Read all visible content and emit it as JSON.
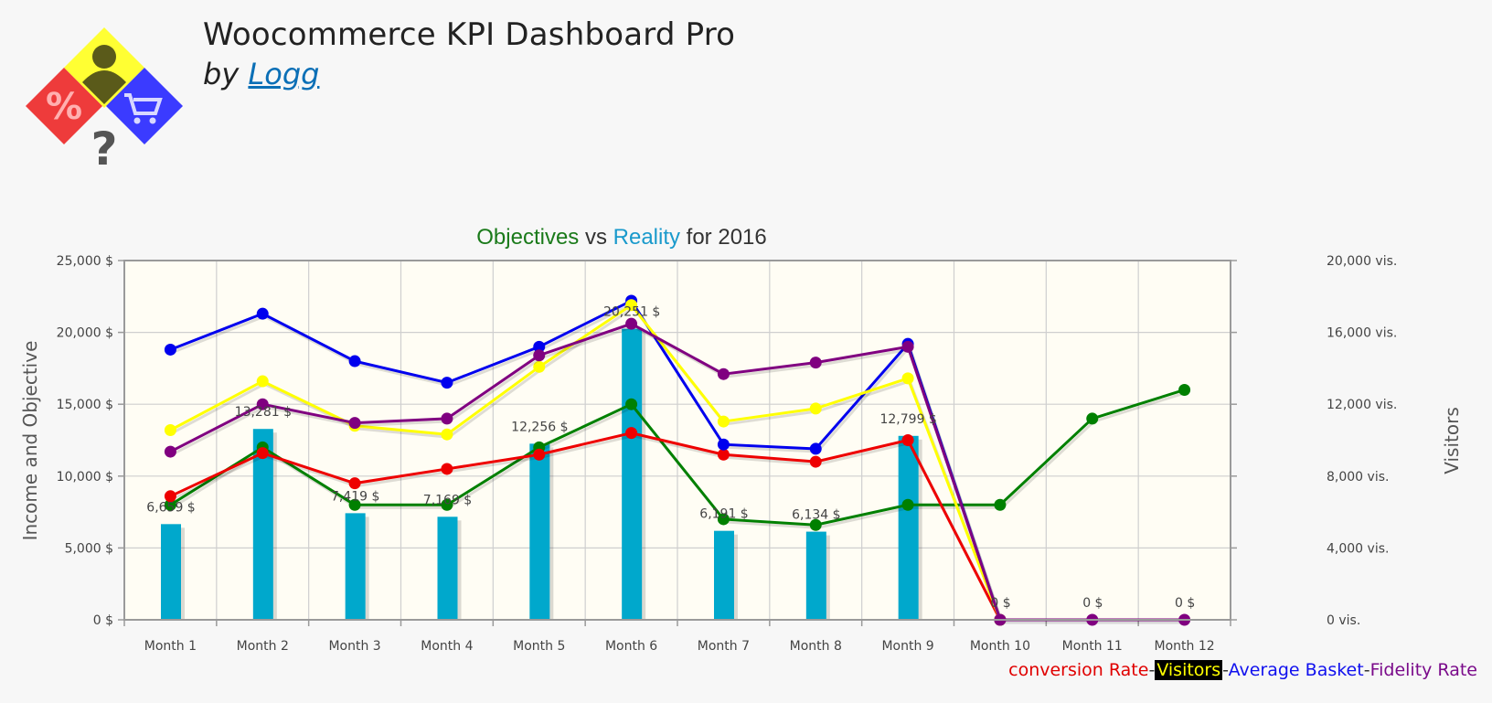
{
  "header": {
    "title": "Woocommerce KPI Dashboard Pro",
    "by_prefix": "by",
    "author_link": "Logg"
  },
  "chart_data": {
    "type": "bar",
    "title_parts": {
      "objectives": "Objectives",
      "vs": " vs ",
      "reality": "Reality",
      "suffix": " for 2016"
    },
    "categories": [
      "Month 1",
      "Month 2",
      "Month 3",
      "Month 4",
      "Month 5",
      "Month 6",
      "Month 7",
      "Month 8",
      "Month 9",
      "Month 10",
      "Month 11",
      "Month 12"
    ],
    "ylabel": "Income and Objective",
    "y2label": "Visitors",
    "ylim": [
      0,
      25000
    ],
    "y2lim": [
      0,
      20000
    ],
    "yticks": [
      "0 $",
      "5,000 $",
      "10,000 $",
      "15,000 $",
      "20,000 $",
      "25,000 $"
    ],
    "ytick_values": [
      0,
      5000,
      10000,
      15000,
      20000,
      25000
    ],
    "y2ticks": [
      "0 vis.",
      "4,000 vis.",
      "8,000 vis.",
      "12,000 vis.",
      "16,000 vis.",
      "20,000 vis."
    ],
    "y2tick_values": [
      0,
      4000,
      8000,
      12000,
      16000,
      20000
    ],
    "grid": true,
    "bars": {
      "values": [
        6659,
        13281,
        7419,
        7169,
        12256,
        20251,
        6191,
        6134,
        12799,
        0,
        0,
        0
      ],
      "labels": [
        "6,659 $",
        "13,281 $",
        "7,419 $",
        "7,169 $",
        "12,256 $",
        "20,251 $",
        "6,191 $",
        "6,134 $",
        "12,799 $",
        "0 $",
        "0 $",
        "0 $"
      ],
      "color": "#00a8cc"
    },
    "series": [
      {
        "color": "#008000",
        "values": [
          8000,
          12000,
          8000,
          8000,
          12000,
          15000,
          7000,
          6600,
          8000,
          8000,
          14000,
          16000
        ],
        "points": 12
      },
      {
        "color": "#ee0000",
        "values": [
          8600,
          11600,
          9500,
          10500,
          11500,
          13000,
          11500,
          11000,
          12500,
          0,
          0,
          0
        ],
        "points": 10
      },
      {
        "color": "#0000ee",
        "values": [
          18800,
          21300,
          18000,
          16500,
          19000,
          22200,
          12200,
          11900,
          19200,
          0,
          0,
          0
        ],
        "points": 10
      },
      {
        "color": "#ffff00",
        "values": [
          13200,
          16600,
          13500,
          12900,
          17600,
          21900,
          13800,
          14700,
          16800,
          0,
          0,
          0
        ],
        "points": 10
      },
      {
        "color": "#800080",
        "values": [
          11700,
          15000,
          13700,
          14000,
          18400,
          20600,
          17100,
          17900,
          19000,
          0,
          0,
          0
        ],
        "points": 12
      }
    ],
    "legend": {
      "items": [
        "conversion Rate",
        "Visitors",
        "Average Basket",
        "Fidelity Rate"
      ],
      "separator": "-",
      "position": "bottom-right"
    },
    "colors": {
      "objectives": "#1a7a1a",
      "reality": "#1a9acc",
      "plot_bg": "#fffdf4",
      "frame": "#9a9a9a",
      "grid": "#cfcfcf"
    }
  }
}
